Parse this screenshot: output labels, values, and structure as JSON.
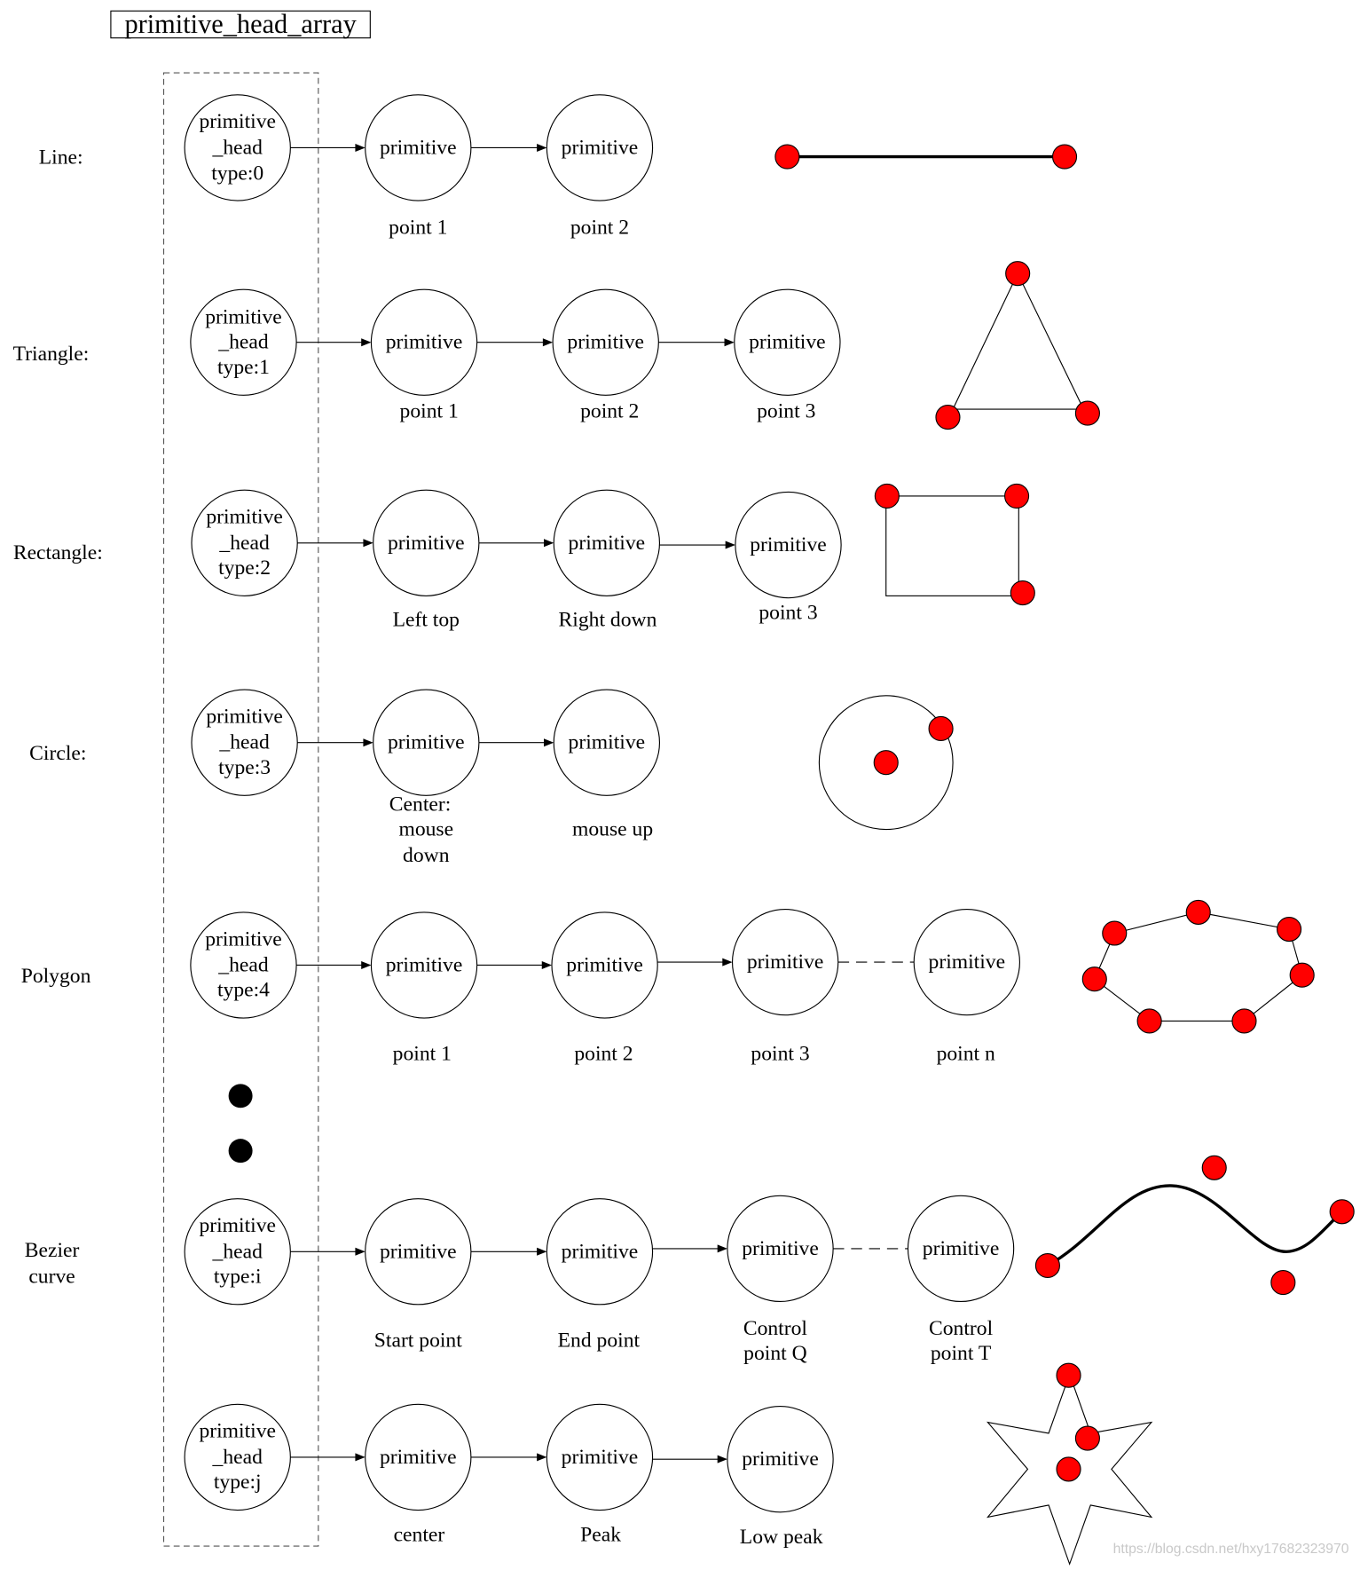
{
  "title": "primitive_head_array",
  "rows": [
    {
      "label": [
        "Line:"
      ],
      "head": [
        "primitive",
        "_head",
        "type:0"
      ],
      "nodes": [
        {
          "text": "primitive",
          "caption": [
            "point 1"
          ]
        },
        {
          "text": "primitive",
          "caption": [
            "point 2"
          ]
        }
      ]
    },
    {
      "label": [
        "Triangle:"
      ],
      "head": [
        "primitive",
        "_head",
        "type:1"
      ],
      "nodes": [
        {
          "text": "primitive",
          "caption": [
            "point 1"
          ]
        },
        {
          "text": "primitive",
          "caption": [
            "point 2"
          ]
        },
        {
          "text": "primitive",
          "caption": [
            "point 3"
          ]
        }
      ]
    },
    {
      "label": [
        "Rectangle:"
      ],
      "head": [
        "primitive",
        "_head",
        "type:2"
      ],
      "nodes": [
        {
          "text": "primitive",
          "caption": [
            "Left top"
          ]
        },
        {
          "text": "primitive",
          "caption": [
            "Right down"
          ]
        },
        {
          "text": "primitive",
          "caption": [
            "point 3"
          ]
        }
      ]
    },
    {
      "label": [
        "Circle:"
      ],
      "head": [
        "primitive",
        "_head",
        "type:3"
      ],
      "nodes": [
        {
          "text": "primitive",
          "caption": [
            "Center:",
            "mouse",
            "down"
          ]
        },
        {
          "text": "primitive",
          "caption": [
            "mouse up"
          ]
        }
      ]
    },
    {
      "label": [
        "Polygon"
      ],
      "head": [
        "primitive",
        "_head",
        "type:4"
      ],
      "nodes": [
        {
          "text": "primitive",
          "caption": [
            "point 1"
          ]
        },
        {
          "text": "primitive",
          "caption": [
            "point 2"
          ]
        },
        {
          "text": "primitive",
          "caption": [
            "point 3"
          ]
        },
        {
          "text": "primitive",
          "caption": [
            "point n"
          ]
        }
      ]
    },
    {
      "label": [
        "Bezier",
        "curve"
      ],
      "head": [
        "primitive",
        "_head",
        "type:i"
      ],
      "nodes": [
        {
          "text": "primitive",
          "caption": [
            "Start point"
          ]
        },
        {
          "text": "primitive",
          "caption": [
            "End point"
          ]
        },
        {
          "text": "primitive",
          "caption": [
            "Control",
            "point Q"
          ]
        },
        {
          "text": "primitive",
          "caption": [
            "Control",
            "point T"
          ]
        }
      ]
    },
    {
      "head": [
        "primitive",
        "_head",
        "type:j"
      ],
      "nodes": [
        {
          "text": "primitive",
          "caption": [
            "center"
          ]
        },
        {
          "text": "primitive",
          "caption": [
            "Peak"
          ]
        },
        {
          "text": "primitive",
          "caption": [
            "Low peak"
          ]
        }
      ]
    }
  ],
  "colors": {
    "point": "#ff0000",
    "ellipsis": "#000000"
  },
  "watermark": "https://blog.csdn.net/hxy17682323970"
}
